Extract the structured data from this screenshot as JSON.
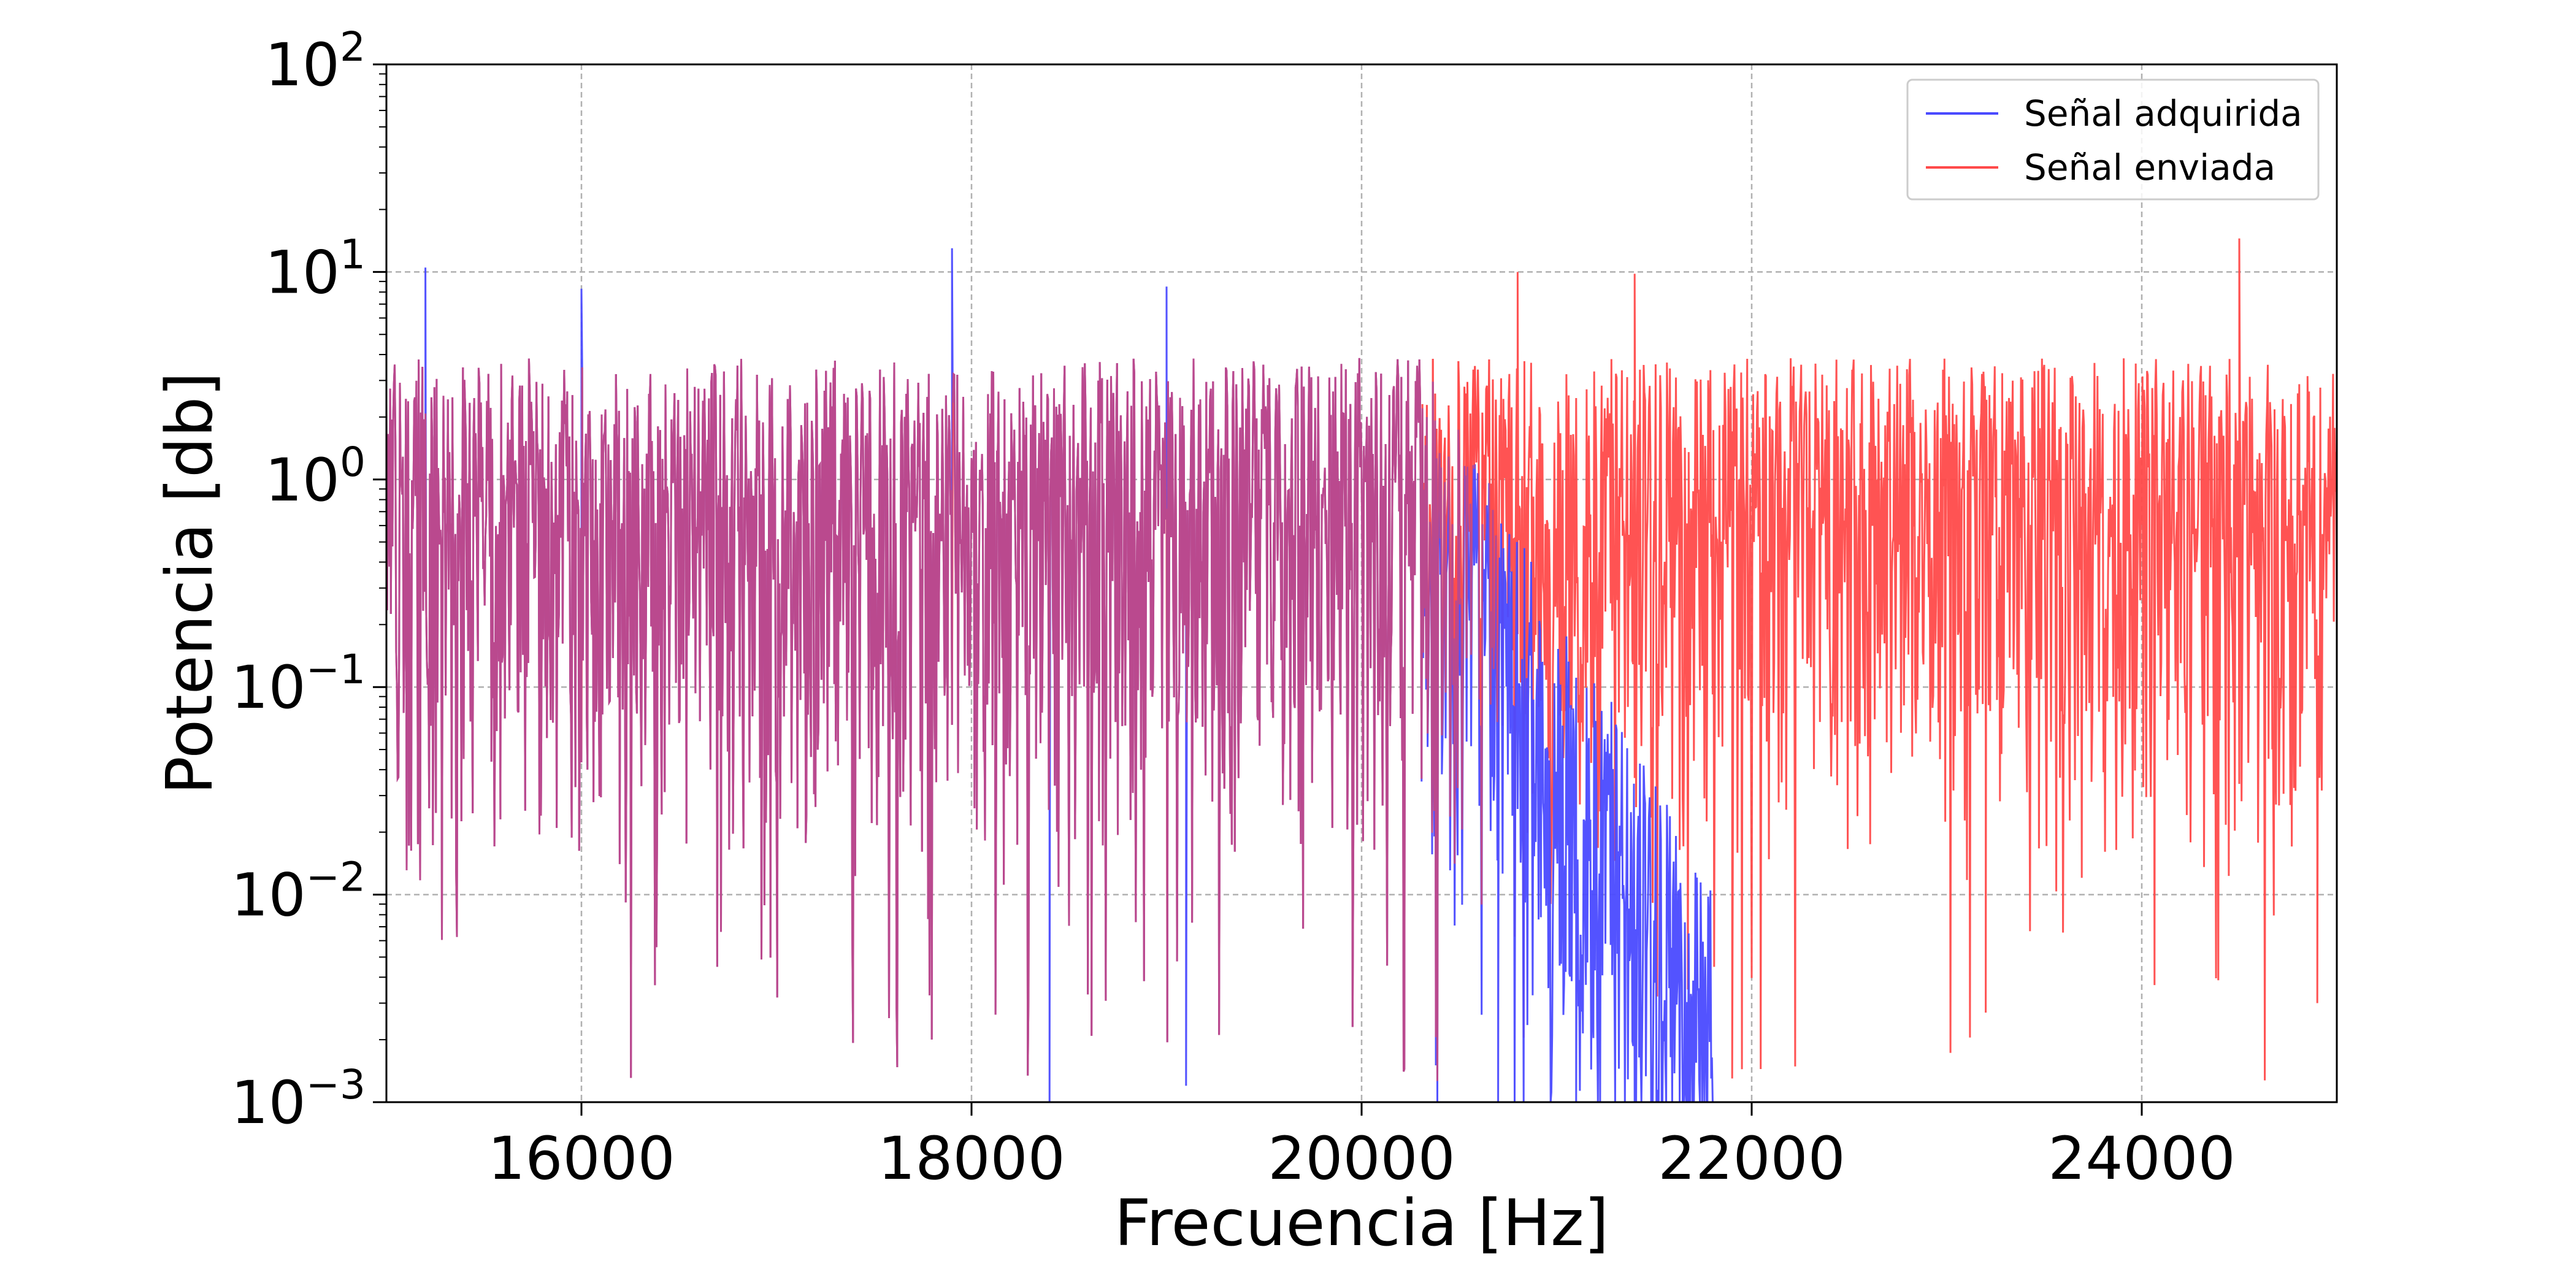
{
  "chart_data": {
    "type": "line",
    "title": "",
    "xlabel": "Frecuencia [Hz]",
    "ylabel": "Potencia [db]",
    "xlim": [
      15000,
      25000
    ],
    "ylim": [
      0.001,
      100
    ],
    "yscale": "log",
    "grid": true,
    "legend_position": "top-right",
    "x_ticks": [
      16000,
      18000,
      20000,
      22000,
      24000
    ],
    "x_tick_labels": [
      "16000",
      "18000",
      "20000",
      "22000",
      "24000"
    ],
    "y_ticks": [
      {
        "value": 0.001,
        "base": "10",
        "exp": "−3"
      },
      {
        "value": 0.01,
        "base": "10",
        "exp": "−2"
      },
      {
        "value": 0.1,
        "base": "10",
        "exp": "−1"
      },
      {
        "value": 1,
        "base": "10",
        "exp": "0"
      },
      {
        "value": 10,
        "base": "10",
        "exp": "1"
      },
      {
        "value": 100,
        "base": "10",
        "exp": "2"
      }
    ],
    "series": [
      {
        "name": "Señal adquirida",
        "color": "#4a4aff",
        "description_points": {
          "x": [
            15000,
            16000,
            17000,
            18000,
            19000,
            20000,
            20500,
            20800,
            21000,
            21200,
            21400,
            21600,
            21800
          ],
          "y": [
            0.8,
            0.8,
            0.8,
            0.8,
            0.8,
            0.7,
            0.4,
            0.1,
            0.05,
            0.02,
            0.006,
            0.002,
            0.001
          ]
        },
        "spikes": [
          {
            "x": 15200,
            "y": 10.5
          },
          {
            "x": 17900,
            "y": 13
          },
          {
            "x": 16000,
            "y": 8.3
          },
          {
            "x": 19000,
            "y": 8.5
          },
          {
            "x": 18400,
            "y": 0.001
          },
          {
            "x": 19100,
            "y": 0.0012
          },
          {
            "x": 20700,
            "y": 0.001
          },
          {
            "x": 21100,
            "y": 0.001
          }
        ]
      },
      {
        "name": "Señal enviada",
        "color": "#ff4a4a",
        "description_points": {
          "x": [
            15000,
            16000,
            17000,
            18000,
            19000,
            20000,
            21000,
            22000,
            23000,
            24000,
            25000
          ],
          "y": [
            0.8,
            0.8,
            0.8,
            0.8,
            0.8,
            0.8,
            0.8,
            0.8,
            0.8,
            0.8,
            0.8
          ]
        },
        "spikes": [
          {
            "x": 24500,
            "y": 14.5
          },
          {
            "x": 20800,
            "y": 10
          },
          {
            "x": 21400,
            "y": 9.8
          },
          {
            "x": 23200,
            "y": 0.0027
          },
          {
            "x": 24900,
            "y": 0.003
          },
          {
            "x": 21900,
            "y": 0.0013
          }
        ]
      }
    ]
  }
}
